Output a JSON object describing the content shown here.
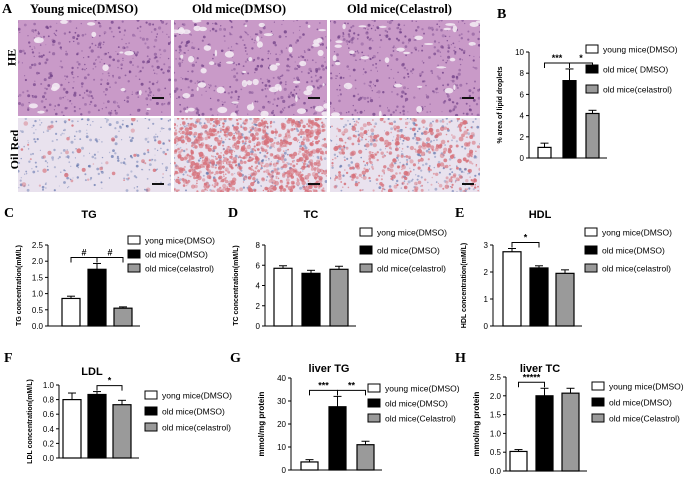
{
  "panelA": {
    "letter": "A",
    "columns": [
      "Young mice(DMSO)",
      "Old mice(DMSO)",
      "Old mice(Celastrol)"
    ],
    "rows": [
      "HE",
      "Oil Red"
    ]
  },
  "colors": {
    "young": "#ffffff",
    "old": "#000000",
    "celastrol": "#9a9a9a",
    "he_tissue": "#c99ac8",
    "oilred_tissue": "#e9e2ee",
    "oilred_droplet": "#d6707a"
  },
  "chart_data": [
    {
      "id": "B",
      "letter": "B",
      "type": "bar",
      "title": "",
      "ylabel": "% area of lipid droplets",
      "ylim": [
        0,
        10
      ],
      "yticks": [
        0,
        2,
        4,
        6,
        8,
        10
      ],
      "series": [
        {
          "name": "young mice(DMSO)",
          "value": 1.0,
          "err": 0.4
        },
        {
          "name": "old mice( DMSO)",
          "value": 7.3,
          "err": 1.1
        },
        {
          "name": "old mice(celastrol)",
          "value": 4.2,
          "err": 0.3
        }
      ],
      "significance": [
        {
          "from": 0,
          "to": 1,
          "label": "***"
        },
        {
          "from": 1,
          "to": 2,
          "label": "*"
        }
      ]
    },
    {
      "id": "C",
      "letter": "C",
      "type": "bar",
      "title": "TG",
      "ylabel": "TG concentration(mM/L)",
      "ylim": [
        0,
        2.5
      ],
      "yticks": [
        0.0,
        0.5,
        1.0,
        1.5,
        2.0,
        2.5
      ],
      "series": [
        {
          "name": "yong mice(DMSO)",
          "value": 0.85,
          "err": 0.07
        },
        {
          "name": "old mice(DMSO)",
          "value": 1.75,
          "err": 0.18
        },
        {
          "name": "old mice(celastrol)",
          "value": 0.55,
          "err": 0.04
        }
      ],
      "significance": [
        {
          "from": 0,
          "to": 1,
          "label": "#"
        },
        {
          "from": 1,
          "to": 2,
          "label": "#"
        }
      ]
    },
    {
      "id": "D",
      "letter": "D",
      "type": "bar",
      "title": "TC",
      "ylabel": "TC concentration(mM/L)",
      "ylim": [
        0,
        8
      ],
      "yticks": [
        0,
        2,
        4,
        6,
        8
      ],
      "series": [
        {
          "name": "yong mice(DMSO)",
          "value": 5.7,
          "err": 0.25
        },
        {
          "name": "old mice(DMSO)",
          "value": 5.2,
          "err": 0.3
        },
        {
          "name": "old mice(celastrol)",
          "value": 5.6,
          "err": 0.3
        }
      ],
      "significance": []
    },
    {
      "id": "E",
      "letter": "E",
      "type": "bar",
      "title": "HDL",
      "ylabel": "HDL concentration(mM/L)",
      "ylim": [
        0,
        3
      ],
      "yticks": [
        0,
        1,
        2,
        3
      ],
      "series": [
        {
          "name": "yong mice(DMSO)",
          "value": 2.75,
          "err": 0.12
        },
        {
          "name": "old mice(DMSO)",
          "value": 2.15,
          "err": 0.08
        },
        {
          "name": "old mice(celastrol)",
          "value": 1.95,
          "err": 0.13
        }
      ],
      "significance": [
        {
          "from": 0,
          "to": 1,
          "label": "*"
        }
      ]
    },
    {
      "id": "F",
      "letter": "F",
      "type": "bar",
      "title": "LDL",
      "ylabel": "LDL concentration(mM/L)",
      "ylim": [
        0,
        1.0
      ],
      "yticks": [
        0.0,
        0.2,
        0.4,
        0.6,
        0.8,
        1.0
      ],
      "series": [
        {
          "name": "yong mice(DMSO)",
          "value": 0.8,
          "err": 0.09
        },
        {
          "name": "old mice(DMSO)",
          "value": 0.87,
          "err": 0.04
        },
        {
          "name": "old mice(celastrol)",
          "value": 0.73,
          "err": 0.06
        }
      ],
      "significance": [
        {
          "from": 1,
          "to": 2,
          "label": "*"
        }
      ]
    },
    {
      "id": "G",
      "letter": "G",
      "type": "bar",
      "title": "liver TG",
      "ylabel": "mmol/mg protein",
      "ylim": [
        0,
        40
      ],
      "yticks": [
        0,
        10,
        20,
        30,
        40
      ],
      "series": [
        {
          "name": "young mice(DMSO)",
          "value": 3.5,
          "err": 1.0
        },
        {
          "name": "old mice(DMSO)",
          "value": 27.5,
          "err": 4.5
        },
        {
          "name": "old mice(Celastrol)",
          "value": 11.0,
          "err": 1.5
        }
      ],
      "significance": [
        {
          "from": 0,
          "to": 1,
          "label": "***"
        },
        {
          "from": 1,
          "to": 2,
          "label": "**"
        }
      ]
    },
    {
      "id": "H",
      "letter": "H",
      "type": "bar",
      "title": "liver TC",
      "ylabel": "mmol/mg protein",
      "ylim": [
        0,
        2.5
      ],
      "yticks": [
        0.0,
        0.5,
        1.0,
        1.5,
        2.0,
        2.5
      ],
      "series": [
        {
          "name": "young mice(DMSO)",
          "value": 0.52,
          "err": 0.05
        },
        {
          "name": "old mice(DMSO)",
          "value": 2.0,
          "err": 0.2
        },
        {
          "name": "old mice(Celastrol)",
          "value": 2.07,
          "err": 0.13
        }
      ],
      "significance": [
        {
          "from": 0,
          "to": 1,
          "label": "*****"
        }
      ]
    }
  ]
}
